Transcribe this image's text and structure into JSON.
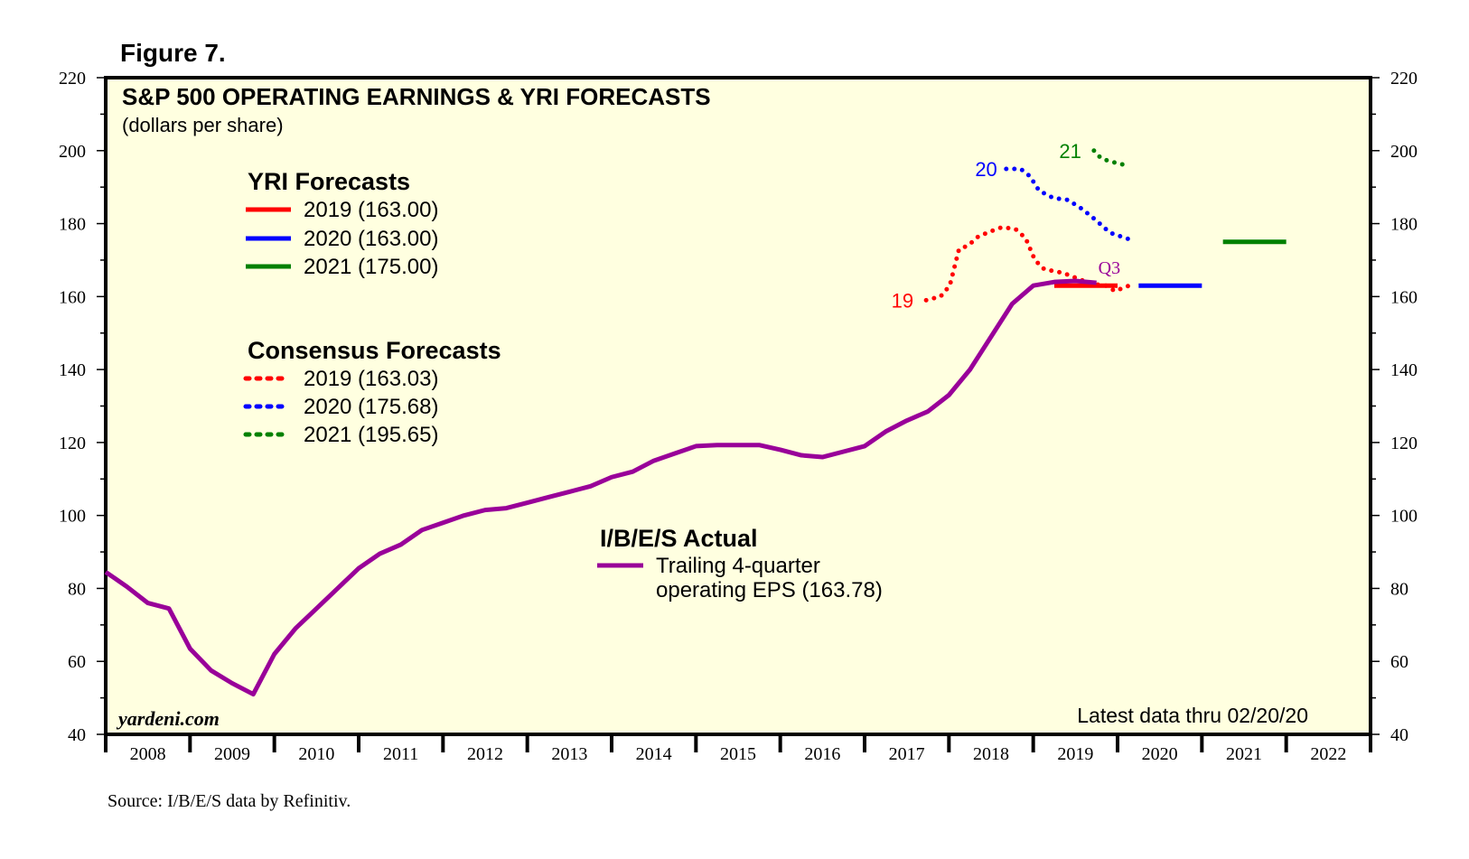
{
  "figure_label": "Figure 7.",
  "source": "Source: I/B/E/S data by Refinitiv.",
  "chart_data": {
    "type": "line",
    "title": "S&P 500 OPERATING EARNINGS & YRI FORECASTS",
    "subtitle": "(dollars per share)",
    "watermark": "yardeni.com",
    "note": "Latest data thru 02/20/20",
    "ylim": [
      40,
      220
    ],
    "yticks": [
      40,
      60,
      80,
      100,
      120,
      140,
      160,
      180,
      200,
      220
    ],
    "xlim": [
      2008,
      2023
    ],
    "xtick_labels": [
      "2008",
      "2009",
      "2010",
      "2011",
      "2012",
      "2013",
      "2014",
      "2015",
      "2016",
      "2017",
      "2018",
      "2019",
      "2020",
      "2021",
      "2022"
    ],
    "grid": false,
    "background": "#ffffe0",
    "legend": {
      "yri_header": "YRI Forecasts",
      "yri": [
        {
          "label": "2019 (163.00)",
          "color": "#ff0000"
        },
        {
          "label": "2020 (163.00)",
          "color": "#0000ff"
        },
        {
          "label": "2021 (175.00)",
          "color": "#008000"
        }
      ],
      "consensus_header": "Consensus Forecasts",
      "consensus": [
        {
          "label": "2019 (163.03)",
          "color": "#ff0000"
        },
        {
          "label": "2020 (175.68)",
          "color": "#0000ff"
        },
        {
          "label": "2021 (195.65)",
          "color": "#008000"
        }
      ],
      "actual_header": "I/B/E/S Actual",
      "actual_line1": "Trailing 4-quarter",
      "actual_line2": "operating EPS (163.78)",
      "actual_color": "#990099"
    },
    "series": {
      "actual": {
        "x": [
          2008.0,
          2008.25,
          2008.5,
          2008.75,
          2009.0,
          2009.25,
          2009.5,
          2009.75,
          2010.0,
          2010.25,
          2010.5,
          2010.75,
          2011.0,
          2011.25,
          2011.5,
          2011.75,
          2012.0,
          2012.25,
          2012.5,
          2012.75,
          2013.0,
          2013.25,
          2013.5,
          2013.75,
          2014.0,
          2014.25,
          2014.5,
          2014.75,
          2015.0,
          2015.25,
          2015.5,
          2015.75,
          2016.0,
          2016.25,
          2016.5,
          2016.75,
          2017.0,
          2017.25,
          2017.5,
          2017.75,
          2018.0,
          2018.25,
          2018.5,
          2018.75,
          2019.0,
          2019.25,
          2019.5,
          2019.75
        ],
        "y": [
          84.5,
          80.5,
          76,
          74.5,
          63.5,
          57.5,
          54,
          51,
          62,
          69,
          74.5,
          80,
          85.5,
          89.5,
          92,
          96,
          98,
          100,
          101.5,
          102,
          103.5,
          105,
          106.5,
          108,
          110.5,
          112,
          115,
          117,
          119,
          119.3,
          119.3,
          119.3,
          118,
          116.5,
          116,
          117.5,
          119,
          123,
          126,
          128.5,
          133,
          140,
          149,
          158,
          163,
          164,
          164.3,
          163.78
        ]
      },
      "consensus_2019": {
        "label": "19",
        "x": [
          2017.73,
          2017.9,
          2018.01,
          2018.12,
          2018.23,
          2018.35,
          2018.51,
          2018.63,
          2018.79,
          2018.91,
          2019.02,
          2019.13,
          2019.35,
          2019.52,
          2019.69,
          2019.86,
          2019.97,
          2020.14
        ],
        "y": [
          159,
          160,
          163,
          173,
          174,
          176.5,
          178,
          179,
          178.5,
          176,
          170,
          167.5,
          166.5,
          165,
          163.5,
          163,
          161.5,
          163.03
        ]
      },
      "consensus_2020": {
        "label": "20",
        "x": [
          2018.68,
          2018.85,
          2018.96,
          2019.07,
          2019.24,
          2019.41,
          2019.58,
          2019.74,
          2019.91,
          2020.14
        ],
        "y": [
          195,
          195,
          193,
          189,
          187,
          186.5,
          184,
          181,
          177.5,
          175.68
        ]
      },
      "consensus_2021": {
        "label": "21",
        "x": [
          2019.72,
          2019.8,
          2019.91,
          2020.02,
          2020.14
        ],
        "y": [
          200,
          198,
          197,
          196.5,
          195.65
        ]
      },
      "yri_2019": {
        "x": [
          2019.25,
          2020.0
        ],
        "y": [
          163,
          163
        ]
      },
      "yri_2020": {
        "x": [
          2020.25,
          2021.0
        ],
        "y": [
          163,
          163
        ]
      },
      "yri_2021": {
        "x": [
          2021.25,
          2022.0
        ],
        "y": [
          175,
          175
        ]
      }
    },
    "annotation": "Q3"
  }
}
